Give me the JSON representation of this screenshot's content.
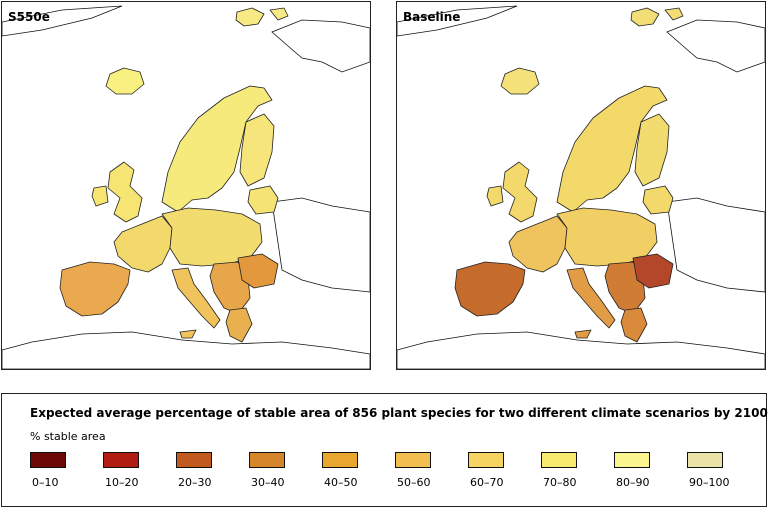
{
  "maps": [
    {
      "title": "S550e",
      "regions": {
        "scandinavia": "#f7ea7c",
        "finland": "#f5e57a",
        "british_isles": "#f6e473",
        "iceland": "#f8f080",
        "western_europe": "#f3d96c",
        "central_europe": "#f2db6f",
        "iberia": "#eba94f",
        "italy": "#f0c35c",
        "balkans": "#e7a64a",
        "romania": "#e3983e",
        "baltic": "#f5e373",
        "greece": "#e9b04f",
        "svalbard": "#f7e983"
      }
    },
    {
      "title": "Baseline",
      "regions": {
        "scandinavia": "#f3d969",
        "finland": "#f2dc70",
        "british_isles": "#f3d86b",
        "iceland": "#f4e17a",
        "western_europe": "#efc35d",
        "central_europe": "#f1cf64",
        "iberia": "#c56b2b",
        "italy": "#e29c46",
        "balkans": "#d07c35",
        "romania": "#b4472a",
        "baltic": "#f3d86c",
        "greece": "#d98a3b",
        "svalbard": "#f3dd77"
      }
    }
  ],
  "legend": {
    "title": "Expected average percentage of stable area of 856 plant species for two different climate scenarios by 2100",
    "subtitle": "% stable area",
    "items": [
      {
        "label": "0–10",
        "color": "#6b0a06"
      },
      {
        "label": "10–20",
        "color": "#b11d12"
      },
      {
        "label": "20–30",
        "color": "#c25a1f"
      },
      {
        "label": "30–40",
        "color": "#d7852a"
      },
      {
        "label": "40–50",
        "color": "#e9a72f"
      },
      {
        "label": "50–60",
        "color": "#f0bf4f"
      },
      {
        "label": "60–70",
        "color": "#f5d462"
      },
      {
        "label": "70–80",
        "color": "#f8ea6f"
      },
      {
        "label": "80–90",
        "color": "#fbf68f"
      },
      {
        "label": "90–100",
        "color": "#ebe2a6"
      }
    ]
  }
}
